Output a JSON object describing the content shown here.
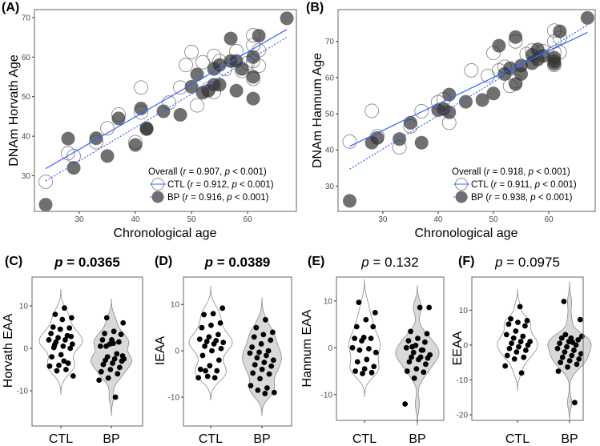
{
  "colors": {
    "line": "#3366ff",
    "bp_fill": "#333333",
    "violin_bp": "#d9d9d9",
    "frame": "#7f7f7f"
  },
  "chart_data": [
    {
      "panel": "(A)",
      "type": "scatter",
      "xlabel": "Chronological age",
      "ylabel": "DNAm Horvath Age",
      "xlim": [
        22,
        68.7
      ],
      "ylim": [
        21,
        72
      ],
      "xticks": [
        30,
        40,
        50,
        60
      ],
      "yticks": [
        30,
        40,
        50,
        60,
        70
      ],
      "legend_position": "bottom-right",
      "legend": [
        {
          "label": "Overall",
          "r": "0.907",
          "p": "< 0.001"
        },
        {
          "label": "CTL",
          "r": "0.912",
          "p": "< 0.001"
        },
        {
          "label": "BP",
          "r": "0.916",
          "p": "< 0.001"
        }
      ],
      "series": [
        {
          "name": "CTL",
          "marker": "open",
          "fit": [
            [
              24,
              31.8
            ],
            [
              67,
              67
            ]
          ],
          "fit_style": "solid",
          "points": [
            [
              24,
              28.5
            ],
            [
              28,
              35.7
            ],
            [
              29,
              35
            ],
            [
              33,
              38.5
            ],
            [
              35,
              42
            ],
            [
              37,
              45.5
            ],
            [
              40,
              38.5
            ],
            [
              41,
              52.3
            ],
            [
              41,
              46
            ],
            [
              46,
              48.5
            ],
            [
              48,
              52.3
            ],
            [
              49,
              58
            ],
            [
              50,
              61.3
            ],
            [
              51,
              47.8
            ],
            [
              52,
              58.7
            ],
            [
              53,
              52
            ],
            [
              54,
              60.3
            ],
            [
              54,
              51.2
            ],
            [
              55,
              59
            ],
            [
              56,
              57
            ],
            [
              58,
              61.5
            ],
            [
              59,
              56.5
            ],
            [
              60,
              58.5
            ],
            [
              61,
              65.5
            ],
            [
              61,
              63
            ],
            [
              61,
              54.5
            ],
            [
              62,
              61.7
            ],
            [
              62,
              57.8
            ],
            [
              61,
              59
            ]
          ]
        },
        {
          "name": "BP",
          "marker": "filled",
          "fit": [
            [
              24,
              28.7
            ],
            [
              67,
              65
            ]
          ],
          "fit_style": "dotted",
          "points": [
            [
              24,
              22.7
            ],
            [
              28,
              39.4
            ],
            [
              29,
              32
            ],
            [
              33,
              39.5
            ],
            [
              35,
              35
            ],
            [
              37,
              44.5
            ],
            [
              40,
              37.8
            ],
            [
              41,
              47
            ],
            [
              42,
              42
            ],
            [
              42,
              41.8
            ],
            [
              45,
              46.3
            ],
            [
              48,
              45.4
            ],
            [
              50,
              52.5
            ],
            [
              51,
              55.6
            ],
            [
              52,
              51
            ],
            [
              53,
              51.5
            ],
            [
              54,
              53
            ],
            [
              54,
              57
            ],
            [
              55,
              58
            ],
            [
              55,
              53
            ],
            [
              57,
              64.7
            ],
            [
              57,
              59
            ],
            [
              58,
              59
            ],
            [
              58,
              51.5
            ],
            [
              59,
              57
            ],
            [
              61,
              60
            ],
            [
              61,
              55
            ],
            [
              61,
              49.5
            ],
            [
              62,
              65.4
            ],
            [
              67,
              69.8
            ]
          ]
        }
      ]
    },
    {
      "panel": "(B)",
      "type": "scatter",
      "xlabel": "Chronological age",
      "ylabel": "DNAm Hannum Age",
      "xlim": [
        21.9,
        68.4
      ],
      "ylim": [
        23,
        78.8
      ],
      "xticks": [
        30,
        40,
        50,
        60
      ],
      "yticks": [
        30,
        40,
        50,
        60,
        70
      ],
      "legend_position": "bottom-right",
      "legend": [
        {
          "label": "Overall",
          "r": "0.918",
          "p": "< 0.001"
        },
        {
          "label": "CTL",
          "r": "0.911",
          "p": "< 0.001"
        },
        {
          "label": "BP",
          "r": "0.938",
          "p": "< 0.001"
        }
      ],
      "series": [
        {
          "name": "CTL",
          "marker": "open",
          "fit": [
            [
              24,
              41
            ],
            [
              67,
              72.5
            ]
          ],
          "fit_style": "solid",
          "points": [
            [
              24,
              42.3
            ],
            [
              28,
              50.8
            ],
            [
              29,
              43.8
            ],
            [
              33,
              40.7
            ],
            [
              35,
              46.5
            ],
            [
              37,
              50.7
            ],
            [
              40,
              53.2
            ],
            [
              41,
              54
            ],
            [
              42,
              47.5
            ],
            [
              46,
              62
            ],
            [
              49,
              60.5
            ],
            [
              50,
              66.8
            ],
            [
              51,
              62
            ],
            [
              52,
              63
            ],
            [
              53,
              57.7
            ],
            [
              54,
              70
            ],
            [
              54,
              59
            ],
            [
              56,
              66.5
            ],
            [
              57,
              67.5
            ],
            [
              59,
              67.3
            ],
            [
              61,
              73
            ],
            [
              61,
              70
            ],
            [
              61,
              67
            ],
            [
              62,
              71
            ],
            [
              62,
              67
            ],
            [
              61,
              63.5
            ]
          ]
        },
        {
          "name": "BP",
          "marker": "filled",
          "fit": [
            [
              24,
              34.7
            ],
            [
              67,
              74.5
            ]
          ],
          "fit_style": "dotted",
          "points": [
            [
              24,
              25.9
            ],
            [
              28,
              42
            ],
            [
              29,
              43.3
            ],
            [
              33,
              43
            ],
            [
              35,
              47.5
            ],
            [
              37,
              42
            ],
            [
              40,
              51
            ],
            [
              41,
              51.3
            ],
            [
              42,
              55.3
            ],
            [
              42,
              50.4
            ],
            [
              45,
              53.3
            ],
            [
              48,
              53.8
            ],
            [
              50,
              55.6
            ],
            [
              51,
              68.8
            ],
            [
              52,
              61
            ],
            [
              53,
              62.6
            ],
            [
              54,
              71.2
            ],
            [
              54,
              58.2
            ],
            [
              55,
              63.3
            ],
            [
              55,
              61
            ],
            [
              57,
              66.3
            ],
            [
              57,
              64
            ],
            [
              58,
              67.8
            ],
            [
              58,
              65
            ],
            [
              59,
              66
            ],
            [
              61,
              65.5
            ],
            [
              61,
              64.5
            ],
            [
              61,
              63.8
            ],
            [
              62,
              72.8
            ],
            [
              67,
              76.5
            ]
          ]
        }
      ]
    },
    {
      "panel": "(C)",
      "type": "violin",
      "ylabel": "Horvath EAA",
      "p": "0.0365",
      "significant": true,
      "categories": [
        "CTL",
        "BP"
      ],
      "ylim": [
        -18.3,
        16.8
      ],
      "yticks": [
        -10,
        0,
        10
      ],
      "values": [
        [
          9.5,
          8,
          7.2,
          6.8,
          5,
          4.8,
          4.5,
          3.5,
          3,
          2.5,
          2,
          2,
          1.5,
          1,
          0.5,
          0.2,
          0,
          -1.5,
          -2,
          -3.5,
          -4,
          -4.2,
          -5,
          -5.3,
          -6.5,
          -3,
          0.8,
          2.8
        ],
        [
          7.2,
          6,
          4,
          3.5,
          3.3,
          2,
          2,
          1.5,
          1,
          0.5,
          -1.3,
          -2,
          -2.5,
          -2.5,
          -2.8,
          -3,
          -3.5,
          -3.8,
          -4.5,
          -5,
          -5.5,
          -6,
          -7,
          -7.5,
          -11.5,
          0.5,
          -1.8,
          1.2
        ]
      ]
    },
    {
      "panel": "(D)",
      "type": "violin",
      "ylabel": "IEAA",
      "p": "0.0389",
      "significant": true,
      "categories": [
        "CTL",
        "BP"
      ],
      "ylim": [
        -16.2,
        15.9
      ],
      "yticks": [
        -10,
        0,
        10
      ],
      "values": [
        [
          9.2,
          8,
          7.8,
          6,
          5.5,
          5,
          3.5,
          3,
          2.5,
          2.2,
          2,
          1.8,
          1.5,
          1,
          0.5,
          0,
          -1,
          -2,
          -3.2,
          -4,
          -4.3,
          -5.5,
          -5.8,
          -5.8,
          -4.3
        ],
        [
          6.7,
          5,
          4,
          3.5,
          3,
          2.3,
          1.5,
          0.8,
          0,
          -0.3,
          -0.5,
          -1,
          -1.5,
          -2,
          -2.5,
          -3,
          -3.3,
          -4,
          -4.8,
          -5,
          -6,
          -7.5,
          -8,
          -8.5,
          -9,
          -9.2
        ]
      ]
    },
    {
      "panel": "(E)",
      "type": "violin",
      "ylabel": "Hannum EAA",
      "p": "0.132",
      "significant": false,
      "categories": [
        "CTL",
        "BP"
      ],
      "ylim": [
        -15.5,
        15.1
      ],
      "yticks": [
        -10,
        0,
        10
      ],
      "values": [
        [
          9.7,
          7.5,
          6,
          4.5,
          4.5,
          2.2,
          2,
          2,
          1.5,
          0,
          -0.2,
          -0.5,
          -1,
          -2.5,
          -3,
          -4,
          -4.5,
          -5,
          -5.3,
          -5.5
        ],
        [
          8.6,
          8.6,
          3.5,
          3,
          2,
          1.5,
          1.2,
          0.5,
          0,
          -0.5,
          -1,
          -1.5,
          -2,
          -2,
          -2.2,
          -2.5,
          -3,
          -3.5,
          -4.5,
          -5,
          -5.2,
          -6.5,
          -12,
          -0.5,
          0.2
        ]
      ]
    },
    {
      "panel": "(F)",
      "type": "violin",
      "ylabel": "EEAA",
      "p": "0.0975",
      "significant": false,
      "categories": [
        "CTL",
        "BP"
      ],
      "ylim": [
        -21.6,
        19.5
      ],
      "yticks": [
        -20,
        -10,
        0,
        10
      ],
      "values": [
        [
          11,
          7.5,
          7,
          6.5,
          6,
          5.5,
          4,
          3,
          2.5,
          2,
          1,
          1,
          0.5,
          0,
          -0.5,
          -1,
          -1.5,
          -2,
          -3,
          -3.5,
          -4,
          -6,
          -8
        ],
        [
          12.5,
          7.3,
          2,
          2,
          1.5,
          1,
          0.5,
          0,
          -0.5,
          -1,
          -1.5,
          -2,
          -2.5,
          -3,
          -3.5,
          -4,
          -4.5,
          -5,
          -5.5,
          -6.3,
          -7.5,
          -16.5,
          3,
          2.5,
          0.8
        ]
      ]
    }
  ]
}
